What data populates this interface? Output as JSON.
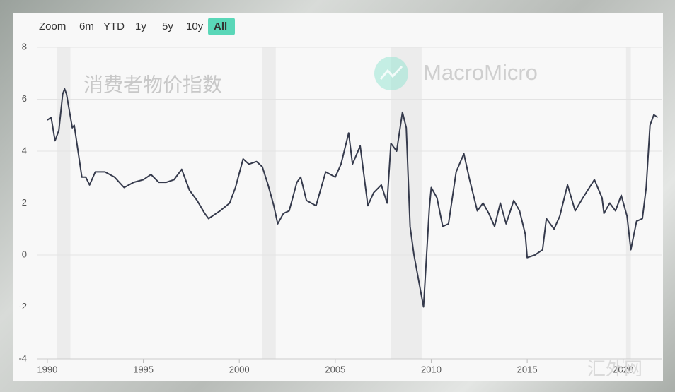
{
  "chart_data": {
    "type": "line",
    "title": "消费者物价指数",
    "watermark": "MacroMicro",
    "corner_mark": "汇外网",
    "toolbar": {
      "label": "Zoom",
      "buttons": [
        "6m",
        "YTD",
        "1y",
        "5y",
        "10y",
        "All"
      ],
      "selected": 5
    },
    "xlim": [
      1989.45,
      2022.0
    ],
    "ylim": [
      -4,
      8
    ],
    "xticks": [
      1990,
      1995,
      2000,
      2005,
      2010,
      2015,
      2020
    ],
    "yticks": [
      -4,
      -2,
      0,
      2,
      4,
      6,
      8
    ],
    "grid": true,
    "recessions": [
      [
        1990.5,
        1991.2
      ],
      [
        2001.2,
        2001.9
      ],
      [
        2007.9,
        2009.5
      ],
      [
        2020.15,
        2020.4
      ]
    ],
    "recession_color": "#ececec",
    "series": [
      {
        "color": "#353a4c",
        "x": [
          1990.0,
          1990.2,
          1990.4,
          1990.6,
          1990.8,
          1990.9,
          1991.0,
          1991.3,
          1991.4,
          1991.6,
          1991.8,
          1992.0,
          1992.2,
          1992.5,
          1993.0,
          1993.5,
          1994.0,
          1994.5,
          1995.0,
          1995.4,
          1995.8,
          1996.2,
          1996.6,
          1997.0,
          1997.4,
          1997.8,
          1998.2,
          1998.4,
          1998.8,
          1999.0,
          1999.5,
          1999.8,
          2000.2,
          2000.5,
          2000.9,
          2001.2,
          2001.5,
          2001.8,
          2002.0,
          2002.3,
          2002.6,
          2003.0,
          2003.2,
          2003.5,
          2004.0,
          2004.5,
          2005.0,
          2005.3,
          2005.7,
          2005.9,
          2006.3,
          2006.7,
          2007.0,
          2007.4,
          2007.7,
          2007.9,
          2008.2,
          2008.5,
          2008.7,
          2008.9,
          2009.1,
          2009.5,
          2009.6,
          2009.9,
          2010.0,
          2010.3,
          2010.6,
          2010.9,
          2011.3,
          2011.7,
          2012.0,
          2012.4,
          2012.7,
          2013.0,
          2013.3,
          2013.6,
          2013.9,
          2014.3,
          2014.6,
          2014.9,
          2015.0,
          2015.4,
          2015.8,
          2016.0,
          2016.4,
          2016.7,
          2017.1,
          2017.5,
          2017.9,
          2018.5,
          2018.9,
          2019.0,
          2019.3,
          2019.6,
          2019.9,
          2020.2,
          2020.4,
          2020.7,
          2021.0,
          2021.2,
          2021.4,
          2021.6,
          2021.8
        ],
        "values": [
          5.2,
          5.3,
          4.4,
          4.8,
          6.2,
          6.4,
          6.2,
          4.9,
          5.0,
          4.0,
          3.0,
          3.0,
          2.7,
          3.2,
          3.2,
          3.0,
          2.6,
          2.8,
          2.9,
          3.1,
          2.8,
          2.8,
          2.9,
          3.3,
          2.5,
          2.1,
          1.6,
          1.4,
          1.6,
          1.7,
          2.0,
          2.6,
          3.7,
          3.5,
          3.6,
          3.4,
          2.7,
          1.9,
          1.2,
          1.6,
          1.7,
          2.8,
          3.0,
          2.1,
          1.9,
          3.2,
          3.0,
          3.5,
          4.7,
          3.5,
          4.2,
          1.9,
          2.4,
          2.7,
          2.0,
          4.3,
          4.0,
          5.5,
          4.9,
          1.1,
          0.0,
          -1.6,
          -2.0,
          1.8,
          2.6,
          2.2,
          1.1,
          1.2,
          3.2,
          3.9,
          2.9,
          1.7,
          2.0,
          1.6,
          1.1,
          2.0,
          1.2,
          2.1,
          1.7,
          0.8,
          -0.1,
          0.0,
          0.2,
          1.4,
          1.0,
          1.5,
          2.7,
          1.7,
          2.2,
          2.9,
          2.2,
          1.6,
          2.0,
          1.7,
          2.3,
          1.5,
          0.2,
          1.3,
          1.4,
          2.6,
          5.0,
          5.4,
          5.3
        ]
      }
    ]
  }
}
